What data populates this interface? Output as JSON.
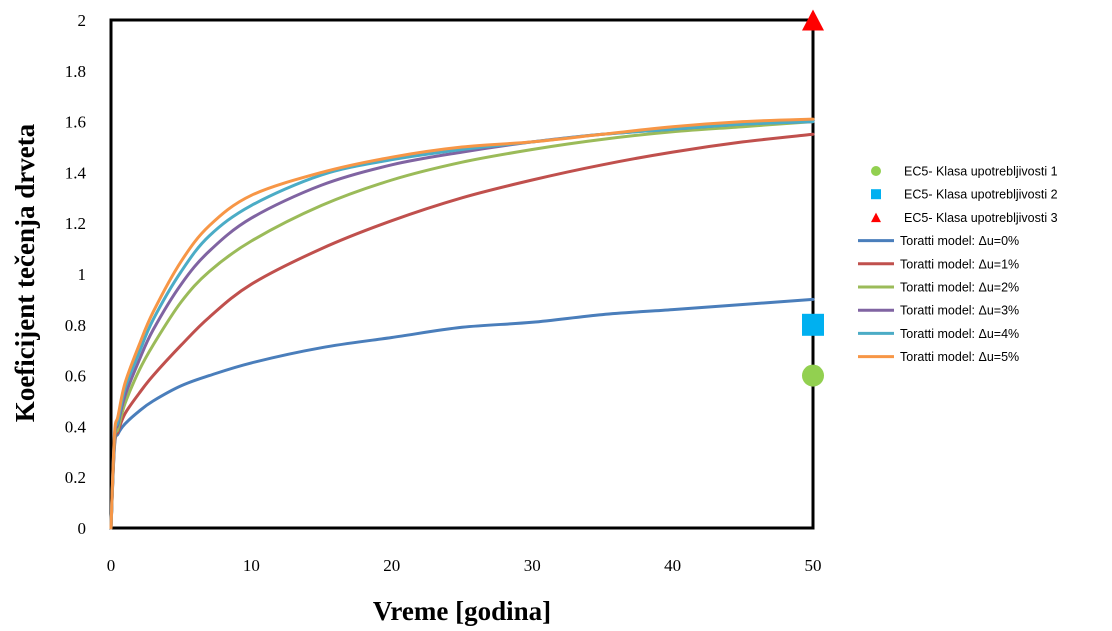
{
  "chart_data": {
    "type": "line",
    "title": "",
    "xlabel": "Vreme [godina]",
    "ylabel": "Koeficijent tečenja drveta",
    "xlim": [
      0,
      50
    ],
    "ylim": [
      0,
      2
    ],
    "xticks": [
      "0",
      "10",
      "20",
      "30",
      "40",
      "50"
    ],
    "yticks": [
      "0",
      "0.2",
      "0.4",
      "0.6",
      "0.8",
      "1",
      "1.2",
      "1.4",
      "1.6",
      "1.8",
      "2"
    ],
    "grid": false,
    "legend_position": "right",
    "series": [
      {
        "name": "Toratti model: Δu=0%",
        "kind": "line",
        "color": "#4a7ebb",
        "x": [
          0,
          0.25,
          0.5,
          1,
          2,
          3,
          5,
          7,
          10,
          15,
          20,
          25,
          30,
          35,
          40,
          45,
          50
        ],
        "y": [
          0,
          0.32,
          0.37,
          0.41,
          0.46,
          0.5,
          0.56,
          0.6,
          0.65,
          0.71,
          0.75,
          0.79,
          0.81,
          0.84,
          0.86,
          0.88,
          0.9
        ]
      },
      {
        "name": "Toratti model: Δu=1%",
        "kind": "line",
        "color": "#c0504d",
        "x": [
          0,
          0.25,
          0.5,
          1,
          2,
          3,
          5,
          7,
          10,
          15,
          20,
          25,
          30,
          35,
          40,
          45,
          50
        ],
        "y": [
          0,
          0.33,
          0.38,
          0.45,
          0.53,
          0.6,
          0.72,
          0.83,
          0.96,
          1.1,
          1.21,
          1.3,
          1.37,
          1.43,
          1.48,
          1.52,
          1.55
        ]
      },
      {
        "name": "Toratti model: Δu=2%",
        "kind": "line",
        "color": "#9bbb59",
        "x": [
          0,
          0.25,
          0.5,
          1,
          2,
          3,
          5,
          7,
          10,
          15,
          20,
          25,
          30,
          35,
          40,
          45,
          50
        ],
        "y": [
          0,
          0.34,
          0.39,
          0.49,
          0.62,
          0.72,
          0.89,
          1.01,
          1.13,
          1.27,
          1.37,
          1.44,
          1.49,
          1.53,
          1.56,
          1.58,
          1.6
        ]
      },
      {
        "name": "Toratti model: Δu=3%",
        "kind": "line",
        "color": "#8064a2",
        "x": [
          0,
          0.25,
          0.5,
          1,
          2,
          3,
          5,
          7,
          10,
          15,
          20,
          25,
          30,
          35,
          40,
          45,
          50
        ],
        "y": [
          0,
          0.35,
          0.41,
          0.52,
          0.66,
          0.78,
          0.96,
          1.09,
          1.22,
          1.35,
          1.43,
          1.48,
          1.52,
          1.55,
          1.57,
          1.59,
          1.6
        ]
      },
      {
        "name": "Toratti model: Δu=4%",
        "kind": "line",
        "color": "#4bacc6",
        "x": [
          0,
          0.25,
          0.5,
          1,
          2,
          3,
          5,
          7,
          10,
          15,
          20,
          25,
          30,
          35,
          40,
          45,
          50
        ],
        "y": [
          0,
          0.36,
          0.42,
          0.55,
          0.69,
          0.82,
          1.01,
          1.15,
          1.27,
          1.39,
          1.45,
          1.49,
          1.52,
          1.55,
          1.57,
          1.59,
          1.6
        ]
      },
      {
        "name": "Toratti model: Δu=5%",
        "kind": "line",
        "color": "#f79646",
        "x": [
          0,
          0.25,
          0.5,
          1,
          2,
          3,
          5,
          7,
          10,
          15,
          20,
          25,
          30,
          35,
          40,
          45,
          50
        ],
        "y": [
          0,
          0.37,
          0.44,
          0.57,
          0.72,
          0.85,
          1.05,
          1.19,
          1.31,
          1.4,
          1.46,
          1.5,
          1.52,
          1.55,
          1.58,
          1.6,
          1.61
        ]
      },
      {
        "name": "EC5- Klasa upotrebljivosti 1",
        "kind": "point",
        "marker": "circle",
        "color": "#92d050",
        "x": [
          50
        ],
        "y": [
          0.6
        ]
      },
      {
        "name": "EC5- Klasa upotrebljivosti 2",
        "kind": "point",
        "marker": "square",
        "color": "#00b0f0",
        "x": [
          50
        ],
        "y": [
          0.8
        ]
      },
      {
        "name": "EC5- Klasa upotrebljivosti 3",
        "kind": "point",
        "marker": "triangle",
        "color": "#ff0000",
        "x": [
          50
        ],
        "y": [
          2
        ]
      }
    ],
    "legend_order": [
      6,
      7,
      8,
      0,
      1,
      2,
      3,
      4,
      5
    ]
  }
}
